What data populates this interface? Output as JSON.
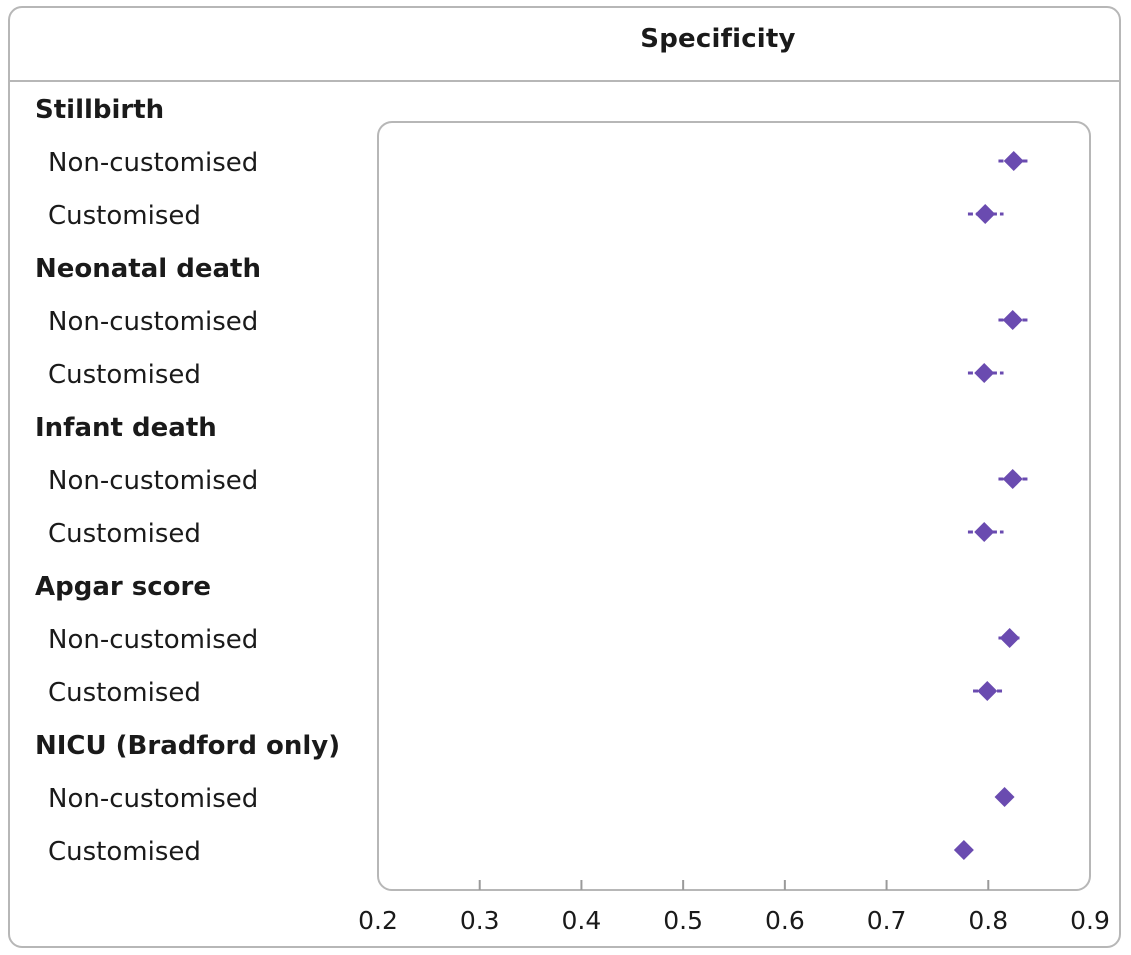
{
  "chart_data": {
    "type": "scatter",
    "title": "Specificity",
    "xlabel": "",
    "ylabel": "",
    "xlim": [
      0.2,
      0.9
    ],
    "xticks": [
      "0.2",
      "0.3",
      "0.4",
      "0.5",
      "0.6",
      "0.7",
      "0.8",
      "0.9"
    ],
    "marker_color": "#6a4bb0",
    "groups": [
      {
        "label": "Stillbirth",
        "rows": [
          {
            "label": "Non-customised",
            "value": 0.825,
            "ci": [
              0.81,
              0.84
            ]
          },
          {
            "label": "Customised",
            "value": 0.797,
            "ci": [
              0.78,
              0.815
            ]
          }
        ]
      },
      {
        "label": "Neonatal death",
        "rows": [
          {
            "label": "Non-customised",
            "value": 0.824,
            "ci": [
              0.81,
              0.84
            ]
          },
          {
            "label": "Customised",
            "value": 0.796,
            "ci": [
              0.78,
              0.815
            ]
          }
        ]
      },
      {
        "label": "Infant death",
        "rows": [
          {
            "label": "Non-customised",
            "value": 0.824,
            "ci": [
              0.81,
              0.84
            ]
          },
          {
            "label": "Customised",
            "value": 0.796,
            "ci": [
              0.78,
              0.815
            ]
          }
        ]
      },
      {
        "label": "Apgar score",
        "rows": [
          {
            "label": "Non-customised",
            "value": 0.821,
            "ci": [
              0.81,
              0.833
            ]
          },
          {
            "label": "Customised",
            "value": 0.799,
            "ci": [
              0.785,
              0.815
            ]
          }
        ]
      },
      {
        "label": "NICU (Bradford only)",
        "rows": [
          {
            "label": "Non-customised",
            "value": 0.816,
            "ci": [
              0.81,
              0.822
            ]
          },
          {
            "label": "Customised",
            "value": 0.776,
            "ci": [
              0.77,
              0.782
            ]
          }
        ]
      }
    ]
  }
}
